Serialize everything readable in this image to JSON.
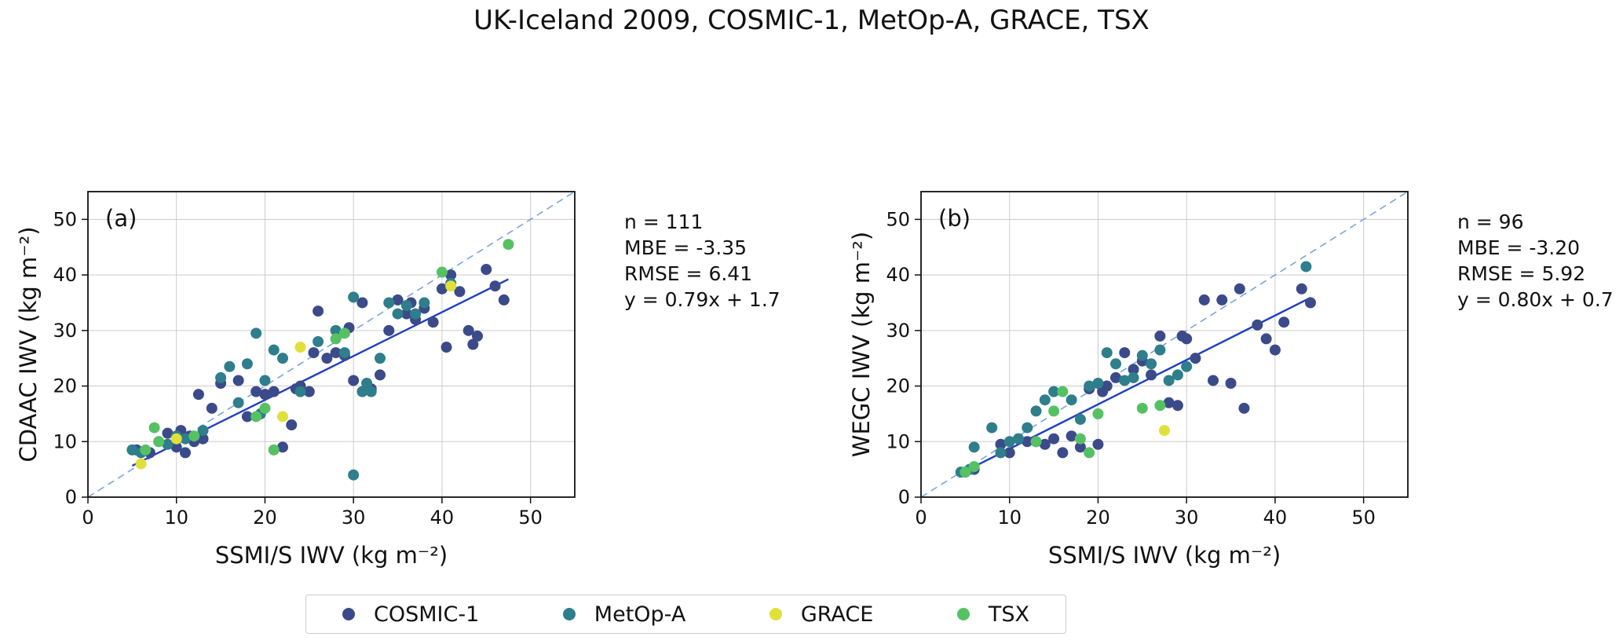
{
  "title": "UK-Iceland 2009, COSMIC-1, MetOp-A, GRACE, TSX",
  "colors": {
    "cosmic1": "#3b4a89",
    "metopa": "#2e7e8c",
    "grace": "#e0e03a",
    "tsx": "#56c163",
    "fit_line": "#2040c0",
    "identity_line": "#7aa6d9",
    "grid": "#cccccc",
    "axis": "#111111"
  },
  "legend": {
    "items": [
      {
        "label": "COSMIC-1",
        "color_key": "cosmic1"
      },
      {
        "label": "MetOp-A",
        "color_key": "metopa"
      },
      {
        "label": "GRACE",
        "color_key": "grace"
      },
      {
        "label": "TSX",
        "color_key": "tsx"
      }
    ]
  },
  "chart_data": [
    {
      "type": "scatter",
      "panel_label": "(a)",
      "xlabel": "SSMI/S IWV (kg m⁻²)",
      "ylabel": "CDAAC IWV (kg m⁻²)",
      "xlim": [
        0,
        55
      ],
      "ylim": [
        0,
        55
      ],
      "ticks": [
        0,
        10,
        20,
        30,
        40,
        50
      ],
      "grid": true,
      "identity_line": true,
      "fit": {
        "slope": 0.79,
        "intercept": 1.7
      },
      "stats_lines": [
        "n = 111",
        "MBE = -3.35",
        "RMSE = 6.41",
        "y = 0.79x + 1.7"
      ],
      "series": [
        {
          "name": "COSMIC-1",
          "color_key": "cosmic1",
          "points": [
            [
              5.5,
              8.5
            ],
            [
              7,
              8
            ],
            [
              9,
              11.5
            ],
            [
              10,
              9
            ],
            [
              10.5,
              12
            ],
            [
              11,
              8
            ],
            [
              11.5,
              11
            ],
            [
              12,
              10
            ],
            [
              12.5,
              18.5
            ],
            [
              13,
              10.5
            ],
            [
              14,
              16
            ],
            [
              15,
              20.5
            ],
            [
              17,
              21
            ],
            [
              18,
              14.5
            ],
            [
              19,
              19
            ],
            [
              20,
              18.5
            ],
            [
              21,
              19
            ],
            [
              22,
              9
            ],
            [
              23,
              13
            ],
            [
              23.5,
              19.5
            ],
            [
              24,
              20
            ],
            [
              25,
              19
            ],
            [
              25.5,
              26
            ],
            [
              26,
              33.5
            ],
            [
              27,
              25
            ],
            [
              28,
              26
            ],
            [
              29,
              25.5
            ],
            [
              29.5,
              30.5
            ],
            [
              30,
              21
            ],
            [
              31,
              35
            ],
            [
              32,
              19.5
            ],
            [
              33,
              22
            ],
            [
              34,
              30
            ],
            [
              35,
              35.5
            ],
            [
              36,
              33
            ],
            [
              36.5,
              35
            ],
            [
              37,
              32
            ],
            [
              38,
              34
            ],
            [
              39,
              31.5
            ],
            [
              40,
              37.5
            ],
            [
              40.5,
              27
            ],
            [
              41,
              40
            ],
            [
              42,
              37
            ],
            [
              43,
              30
            ],
            [
              43.5,
              27.5
            ],
            [
              44,
              29
            ],
            [
              45,
              41
            ],
            [
              46,
              38
            ],
            [
              47,
              35.5
            ]
          ]
        },
        {
          "name": "MetOp-A",
          "color_key": "metopa",
          "points": [
            [
              5,
              8.5
            ],
            [
              6,
              8
            ],
            [
              8,
              10
            ],
            [
              9,
              9.5
            ],
            [
              10,
              11
            ],
            [
              11,
              10.5
            ],
            [
              13,
              12
            ],
            [
              15,
              21.5
            ],
            [
              16,
              23.5
            ],
            [
              17,
              17
            ],
            [
              18,
              24
            ],
            [
              19,
              29.5
            ],
            [
              19.5,
              15
            ],
            [
              20,
              21
            ],
            [
              21,
              26.5
            ],
            [
              22,
              25
            ],
            [
              24,
              19
            ],
            [
              26,
              28
            ],
            [
              28,
              30
            ],
            [
              29,
              26
            ],
            [
              30,
              36
            ],
            [
              30,
              4
            ],
            [
              31,
              19
            ],
            [
              31.5,
              20.5
            ],
            [
              32,
              19
            ],
            [
              33,
              25
            ],
            [
              34,
              35
            ],
            [
              35,
              33
            ],
            [
              36,
              34.5
            ],
            [
              37,
              33
            ],
            [
              38,
              35
            ],
            [
              41,
              38.5
            ]
          ]
        },
        {
          "name": "GRACE",
          "color_key": "grace",
          "points": [
            [
              6,
              6
            ],
            [
              10,
              10.5
            ],
            [
              22,
              14.5
            ],
            [
              24,
              27
            ],
            [
              41,
              38
            ]
          ]
        },
        {
          "name": "TSX",
          "color_key": "tsx",
          "points": [
            [
              6.5,
              8.5
            ],
            [
              7.5,
              12.5
            ],
            [
              8,
              10
            ],
            [
              12,
              11
            ],
            [
              19,
              14.5
            ],
            [
              20,
              16
            ],
            [
              21,
              8.5
            ],
            [
              28,
              28.5
            ],
            [
              29,
              29.5
            ],
            [
              40,
              40.5
            ],
            [
              47.5,
              45.5
            ]
          ]
        }
      ]
    },
    {
      "type": "scatter",
      "panel_label": "(b)",
      "xlabel": "SSMI/S IWV (kg m⁻²)",
      "ylabel": "WEGC IWV (kg m⁻²)",
      "xlim": [
        0,
        55
      ],
      "ylim": [
        0,
        55
      ],
      "ticks": [
        0,
        10,
        20,
        30,
        40,
        50
      ],
      "grid": true,
      "identity_line": true,
      "fit": {
        "slope": 0.8,
        "intercept": 0.7
      },
      "stats_lines": [
        "n = 96",
        "MBE = -3.20",
        "RMSE = 5.92",
        "y = 0.80x + 0.7"
      ],
      "series": [
        {
          "name": "COSMIC-1",
          "color_key": "cosmic1",
          "points": [
            [
              5,
              4.5
            ],
            [
              6,
              5
            ],
            [
              9,
              9.5
            ],
            [
              10,
              8
            ],
            [
              11,
              10.5
            ],
            [
              12,
              10
            ],
            [
              13,
              10
            ],
            [
              14,
              9.5
            ],
            [
              15,
              10.5
            ],
            [
              16,
              8
            ],
            [
              17,
              11
            ],
            [
              18,
              9
            ],
            [
              19,
              19.5
            ],
            [
              20,
              9.5
            ],
            [
              20.5,
              19
            ],
            [
              21,
              20
            ],
            [
              22,
              21.5
            ],
            [
              23,
              26
            ],
            [
              24,
              23
            ],
            [
              25,
              24.5
            ],
            [
              26,
              22
            ],
            [
              27,
              29
            ],
            [
              28,
              17
            ],
            [
              29,
              16.5
            ],
            [
              29.5,
              29
            ],
            [
              30,
              28.5
            ],
            [
              31,
              25
            ],
            [
              32,
              35.5
            ],
            [
              33,
              21
            ],
            [
              34,
              35.5
            ],
            [
              35,
              20.5
            ],
            [
              36,
              37.5
            ],
            [
              36.5,
              16
            ],
            [
              38,
              31
            ],
            [
              39,
              28.5
            ],
            [
              40,
              26.5
            ],
            [
              41,
              31.5
            ],
            [
              43,
              37.5
            ],
            [
              44,
              35
            ]
          ]
        },
        {
          "name": "MetOp-A",
          "color_key": "metopa",
          "points": [
            [
              4.5,
              4.5
            ],
            [
              5.5,
              5
            ],
            [
              6,
              9
            ],
            [
              8,
              12.5
            ],
            [
              9,
              8
            ],
            [
              10,
              10
            ],
            [
              11,
              10.5
            ],
            [
              12,
              12.5
            ],
            [
              13,
              15.5
            ],
            [
              14,
              17.5
            ],
            [
              15,
              19
            ],
            [
              17,
              17.5
            ],
            [
              18,
              14
            ],
            [
              19,
              20
            ],
            [
              20,
              20.5
            ],
            [
              21,
              26
            ],
            [
              22,
              24
            ],
            [
              23,
              21
            ],
            [
              24,
              21.5
            ],
            [
              25,
              25.5
            ],
            [
              26,
              24
            ],
            [
              27,
              26.5
            ],
            [
              28,
              21
            ],
            [
              29,
              22
            ],
            [
              30,
              23.5
            ],
            [
              43.5,
              41.5
            ]
          ]
        },
        {
          "name": "GRACE",
          "color_key": "grace",
          "points": [
            [
              27.5,
              12
            ]
          ]
        },
        {
          "name": "TSX",
          "color_key": "tsx",
          "points": [
            [
              5,
              4.5
            ],
            [
              6,
              5.5
            ],
            [
              13,
              10
            ],
            [
              15,
              15.5
            ],
            [
              16,
              19
            ],
            [
              18,
              10.5
            ],
            [
              19,
              8
            ],
            [
              20,
              15
            ],
            [
              25,
              16
            ],
            [
              27,
              16.5
            ]
          ]
        }
      ]
    }
  ]
}
